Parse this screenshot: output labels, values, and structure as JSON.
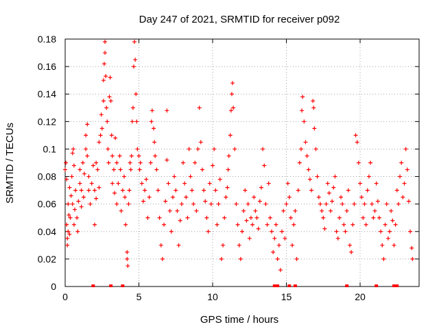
{
  "chart_data": {
    "type": "scatter",
    "title": "Day 247 of 2021, SRMTID for receiver p092",
    "xlabel": "GPS time / hours",
    "ylabel": "SRMTID / TECUs",
    "xlim": [
      0,
      24
    ],
    "ylim": [
      0,
      0.18
    ],
    "xticks": [
      0,
      5,
      10,
      15,
      20
    ],
    "xtick_labels": [
      "0",
      "5",
      "10",
      "15",
      "20"
    ],
    "yticks": [
      0,
      0.02,
      0.04,
      0.06,
      0.08,
      0.1,
      0.12,
      0.14,
      0.16,
      0.18
    ],
    "ytick_labels": [
      "0",
      "0.02",
      "0.04",
      "0.06",
      "0.08",
      "0.1",
      "0.12",
      "0.14",
      "0.16",
      "0.18"
    ],
    "grid": true,
    "marker": "+",
    "color": "#ff0000",
    "series": [
      {
        "name": "SRMTID",
        "points": [
          [
            0.0,
            0.085
          ],
          [
            0.05,
            0.09
          ],
          [
            0.1,
            0.078
          ],
          [
            0.1,
            0.045
          ],
          [
            0.15,
            0.035
          ],
          [
            0.15,
            0.03
          ],
          [
            0.2,
            0.04
          ],
          [
            0.2,
            0.06
          ],
          [
            0.25,
            0.052
          ],
          [
            0.3,
            0.038
          ],
          [
            0.3,
            0.072
          ],
          [
            0.35,
            0.05
          ],
          [
            0.4,
            0.066
          ],
          [
            0.45,
            0.08
          ],
          [
            0.5,
            0.097
          ],
          [
            0.5,
            0.06
          ],
          [
            0.55,
            0.1
          ],
          [
            0.6,
            0.088
          ],
          [
            0.6,
            0.045
          ],
          [
            0.65,
            0.056
          ],
          [
            0.7,
            0.07
          ],
          [
            0.8,
            0.05
          ],
          [
            0.85,
            0.04
          ],
          [
            0.9,
            0.062
          ],
          [
            1.0,
            0.075
          ],
          [
            1.0,
            0.085
          ],
          [
            1.1,
            0.07
          ],
          [
            1.1,
            0.058
          ],
          [
            1.2,
            0.09
          ],
          [
            1.25,
            0.065
          ],
          [
            1.3,
            0.082
          ],
          [
            1.4,
            0.1
          ],
          [
            1.4,
            0.11
          ],
          [
            1.5,
            0.118
          ],
          [
            1.5,
            0.095
          ],
          [
            1.6,
            0.07
          ],
          [
            1.6,
            0.08
          ],
          [
            1.7,
            0.06
          ],
          [
            1.8,
            0.075
          ],
          [
            1.9,
            0.088
          ],
          [
            2.0,
            0.07
          ],
          [
            2.0,
            0.045
          ],
          [
            2.1,
            0.064
          ],
          [
            2.1,
            0.09
          ],
          [
            2.2,
            0.085
          ],
          [
            2.3,
            0.072
          ],
          [
            2.3,
            0.105
          ],
          [
            2.4,
            0.11
          ],
          [
            2.45,
            0.125
          ],
          [
            2.5,
            0.115
          ],
          [
            2.6,
            0.135
          ],
          [
            2.6,
            0.15
          ],
          [
            2.65,
            0.162
          ],
          [
            2.7,
            0.17
          ],
          [
            2.7,
            0.178
          ],
          [
            2.75,
            0.153
          ],
          [
            2.8,
            0.13
          ],
          [
            2.85,
            0.12
          ],
          [
            2.9,
            0.1
          ],
          [
            2.95,
            0.09
          ],
          [
            3.0,
            0.138
          ],
          [
            3.05,
            0.152
          ],
          [
            3.1,
            0.135
          ],
          [
            3.15,
            0.11
          ],
          [
            3.2,
            0.095
          ],
          [
            3.2,
            0.075
          ],
          [
            3.3,
            0.085
          ],
          [
            3.35,
            0.068
          ],
          [
            3.4,
            0.108
          ],
          [
            3.5,
            0.09
          ],
          [
            3.5,
            0.06
          ],
          [
            3.6,
            0.075
          ],
          [
            3.7,
            0.095
          ],
          [
            3.75,
            0.085
          ],
          [
            3.8,
            0.055
          ],
          [
            3.9,
            0.07
          ],
          [
            4.0,
            0.08
          ],
          [
            4.05,
            0.065
          ],
          [
            4.1,
            0.045
          ],
          [
            4.2,
            0.02
          ],
          [
            4.2,
            0.025
          ],
          [
            4.25,
            0.015
          ],
          [
            4.3,
            0.06
          ],
          [
            4.35,
            0.07
          ],
          [
            4.4,
            0.09
          ],
          [
            4.45,
            0.085
          ],
          [
            4.5,
            0.095
          ],
          [
            4.55,
            0.12
          ],
          [
            4.6,
            0.13
          ],
          [
            4.65,
            0.16
          ],
          [
            4.7,
            0.178
          ],
          [
            4.75,
            0.165
          ],
          [
            4.8,
            0.14
          ],
          [
            4.85,
            0.12
          ],
          [
            4.9,
            0.1
          ],
          [
            5.0,
            0.095
          ],
          [
            5.05,
            0.085
          ],
          [
            5.1,
            0.09
          ],
          [
            5.2,
            0.075
          ],
          [
            5.3,
            0.062
          ],
          [
            5.4,
            0.07
          ],
          [
            5.5,
            0.078
          ],
          [
            5.6,
            0.05
          ],
          [
            5.7,
            0.065
          ],
          [
            5.8,
            0.09
          ],
          [
            5.85,
            0.12
          ],
          [
            5.9,
            0.128
          ],
          [
            6.0,
            0.115
          ],
          [
            6.05,
            0.105
          ],
          [
            6.1,
            0.095
          ],
          [
            6.2,
            0.085
          ],
          [
            6.3,
            0.07
          ],
          [
            6.4,
            0.05
          ],
          [
            6.5,
            0.03
          ],
          [
            6.6,
            0.02
          ],
          [
            6.7,
            0.045
          ],
          [
            6.8,
            0.062
          ],
          [
            6.9,
            0.128
          ],
          [
            6.9,
            0.092
          ],
          [
            7.0,
            0.075
          ],
          [
            7.1,
            0.055
          ],
          [
            7.2,
            0.04
          ],
          [
            7.3,
            0.065
          ],
          [
            7.4,
            0.08
          ],
          [
            7.5,
            0.07
          ],
          [
            7.6,
            0.055
          ],
          [
            7.7,
            0.03
          ],
          [
            7.8,
            0.048
          ],
          [
            7.9,
            0.06
          ],
          [
            8.0,
            0.09
          ],
          [
            8.1,
            0.075
          ],
          [
            8.2,
            0.065
          ],
          [
            8.3,
            0.05
          ],
          [
            8.4,
            0.1
          ],
          [
            8.5,
            0.08
          ],
          [
            8.6,
            0.07
          ],
          [
            8.7,
            0.06
          ],
          [
            8.8,
            0.09
          ],
          [
            8.9,
            0.055
          ],
          [
            9.0,
            0.1
          ],
          [
            9.1,
            0.13
          ],
          [
            9.2,
            0.105
          ],
          [
            9.3,
            0.085
          ],
          [
            9.4,
            0.07
          ],
          [
            9.5,
            0.062
          ],
          [
            9.6,
            0.05
          ],
          [
            9.7,
            0.04
          ],
          [
            9.8,
            0.075
          ],
          [
            9.9,
            0.06
          ],
          [
            10.0,
            0.088
          ],
          [
            10.1,
            0.1
          ],
          [
            10.2,
            0.07
          ],
          [
            10.3,
            0.045
          ],
          [
            10.4,
            0.06
          ],
          [
            10.5,
            0.078
          ],
          [
            10.6,
            0.02
          ],
          [
            10.7,
            0.03
          ],
          [
            10.8,
            0.05
          ],
          [
            10.9,
            0.065
          ],
          [
            11.0,
            0.072
          ],
          [
            11.05,
            0.085
          ],
          [
            11.1,
            0.095
          ],
          [
            11.2,
            0.11
          ],
          [
            11.25,
            0.128
          ],
          [
            11.3,
            0.14
          ],
          [
            11.35,
            0.148
          ],
          [
            11.4,
            0.13
          ],
          [
            11.5,
            0.1
          ],
          [
            11.6,
            0.06
          ],
          [
            11.7,
            0.045
          ],
          [
            11.8,
            0.03
          ],
          [
            11.9,
            0.02
          ],
          [
            12.0,
            0.04
          ],
          [
            12.1,
            0.055
          ],
          [
            12.2,
            0.07
          ],
          [
            12.3,
            0.048
          ],
          [
            12.4,
            0.06
          ],
          [
            12.5,
            0.035
          ],
          [
            12.6,
            0.05
          ],
          [
            12.7,
            0.045
          ],
          [
            12.8,
            0.065
          ],
          [
            12.9,
            0.055
          ],
          [
            13.0,
            0.05
          ],
          [
            13.1,
            0.042
          ],
          [
            13.2,
            0.062
          ],
          [
            13.3,
            0.072
          ],
          [
            13.4,
            0.1
          ],
          [
            13.5,
            0.088
          ],
          [
            13.6,
            0.06
          ],
          [
            13.7,
            0.045
          ],
          [
            13.8,
            0.075
          ],
          [
            13.9,
            0.05
          ],
          [
            14.0,
            0.04
          ],
          [
            14.1,
            0.025
          ],
          [
            14.2,
            0.035
          ],
          [
            14.3,
            0.045
          ],
          [
            14.4,
            0.02
          ],
          [
            14.5,
            0.03
          ],
          [
            14.6,
            0.012
          ],
          [
            14.7,
            0.04
          ],
          [
            14.8,
            0.055
          ],
          [
            14.9,
            0.035
          ],
          [
            15.0,
            0.06
          ],
          [
            15.1,
            0.075
          ],
          [
            15.2,
            0.065
          ],
          [
            15.3,
            0.05
          ],
          [
            15.4,
            0.03
          ],
          [
            15.5,
            0.045
          ],
          [
            15.6,
            0.055
          ],
          [
            15.7,
            0.02
          ],
          [
            15.8,
            0.07
          ],
          [
            15.9,
            0.09
          ],
          [
            16.0,
            0.1
          ],
          [
            16.05,
            0.128
          ],
          [
            16.1,
            0.138
          ],
          [
            16.2,
            0.12
          ],
          [
            16.3,
            0.105
          ],
          [
            16.4,
            0.095
          ],
          [
            16.5,
            0.085
          ],
          [
            16.6,
            0.078
          ],
          [
            16.7,
            0.07
          ],
          [
            16.8,
            0.135
          ],
          [
            16.85,
            0.13
          ],
          [
            16.9,
            0.115
          ],
          [
            17.0,
            0.1
          ],
          [
            17.1,
            0.08
          ],
          [
            17.2,
            0.065
          ],
          [
            17.3,
            0.06
          ],
          [
            17.4,
            0.055
          ],
          [
            17.5,
            0.05
          ],
          [
            17.6,
            0.042
          ],
          [
            17.7,
            0.06
          ],
          [
            17.8,
            0.075
          ],
          [
            17.9,
            0.068
          ],
          [
            18.0,
            0.055
          ],
          [
            18.1,
            0.062
          ],
          [
            18.2,
            0.072
          ],
          [
            18.3,
            0.08
          ],
          [
            18.4,
            0.04
          ],
          [
            18.5,
            0.035
          ],
          [
            18.6,
            0.05
          ],
          [
            18.7,
            0.065
          ],
          [
            18.8,
            0.06
          ],
          [
            18.9,
            0.045
          ],
          [
            19.0,
            0.04
          ],
          [
            19.1,
            0.055
          ],
          [
            19.2,
            0.07
          ],
          [
            19.3,
            0.03
          ],
          [
            19.4,
            0.025
          ],
          [
            19.5,
            0.045
          ],
          [
            19.6,
            0.06
          ],
          [
            19.7,
            0.11
          ],
          [
            19.8,
            0.105
          ],
          [
            19.9,
            0.09
          ],
          [
            20.0,
            0.075
          ],
          [
            20.1,
            0.065
          ],
          [
            20.2,
            0.05
          ],
          [
            20.3,
            0.06
          ],
          [
            20.4,
            0.045
          ],
          [
            20.5,
            0.07
          ],
          [
            20.6,
            0.08
          ],
          [
            20.7,
            0.09
          ],
          [
            20.8,
            0.06
          ],
          [
            20.9,
            0.05
          ],
          [
            21.0,
            0.055
          ],
          [
            21.1,
            0.075
          ],
          [
            21.2,
            0.062
          ],
          [
            21.3,
            0.05
          ],
          [
            21.4,
            0.04
          ],
          [
            21.5,
            0.03
          ],
          [
            21.6,
            0.02
          ],
          [
            21.7,
            0.045
          ],
          [
            21.8,
            0.06
          ],
          [
            21.9,
            0.035
          ],
          [
            22.0,
            0.04
          ],
          [
            22.1,
            0.055
          ],
          [
            22.2,
            0.048
          ],
          [
            22.3,
            0.03
          ],
          [
            22.4,
            0.045
          ],
          [
            22.5,
            0.07
          ],
          [
            22.6,
            0.06
          ],
          [
            22.7,
            0.08
          ],
          [
            22.8,
            0.09
          ],
          [
            22.9,
            0.065
          ],
          [
            23.0,
            0.075
          ],
          [
            23.1,
            0.1
          ],
          [
            23.2,
            0.085
          ],
          [
            23.3,
            0.062
          ],
          [
            23.4,
            0.04
          ],
          [
            23.5,
            0.028
          ],
          [
            23.55,
            0.02
          ]
        ]
      }
    ],
    "zero_markers_x": [
      1.9,
      3.1,
      3.9,
      14.2,
      14.4,
      15.2,
      15.6,
      19.1,
      21.1,
      22.3,
      22.4,
      22.5
    ]
  }
}
